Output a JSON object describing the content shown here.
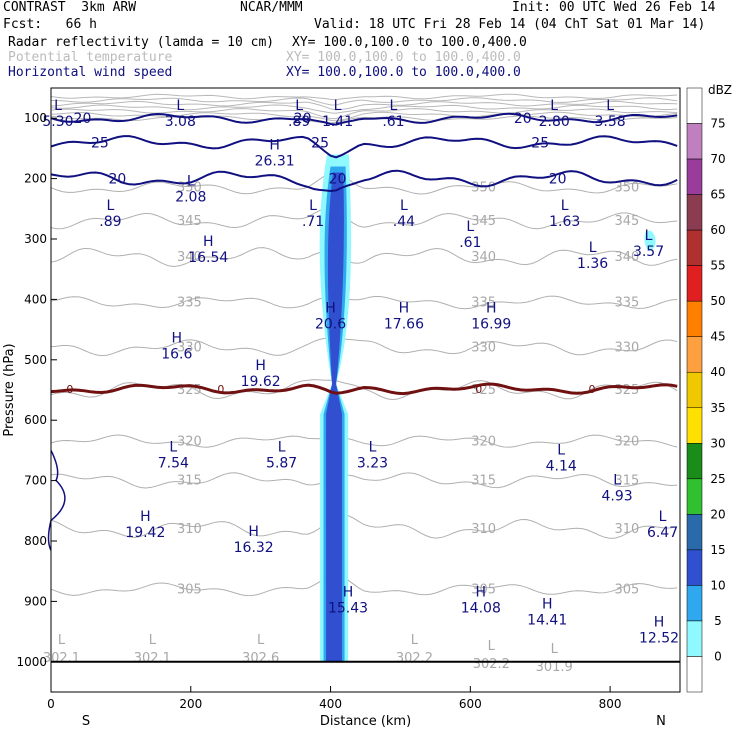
{
  "header": {
    "model": "CONTRAST  3km ARW",
    "org": "NCAR/MMM",
    "init": "Init: 00 UTC Wed 26 Feb 14",
    "fcst": "Fcst:   66 h",
    "valid": "Valid: 18 UTC Fri 28 Feb 14 (04 ChT Sat 01 Mar 14)",
    "fields": [
      {
        "name": "Radar reflectivity (lamda = 10 cm)",
        "xy": "XY= 100.0,100.0 to 100.0,400.0",
        "color": "#000000"
      },
      {
        "name": "Potential temperature",
        "xy": "XY= 100.0,100.0 to 100.0,400.0",
        "color": "#bbbbbb"
      },
      {
        "name": "Horizontal wind speed",
        "xy": "XY= 100.0,100.0 to 100.0,400.0",
        "color": "#101080"
      }
    ]
  },
  "colorbar": {
    "unit": "dBZ",
    "levels": [
      "75",
      "70",
      "65",
      "60",
      "55",
      "50",
      "45",
      "40",
      "35",
      "30",
      "25",
      "20",
      "15",
      "10",
      "5",
      "0"
    ],
    "colors": [
      "#ffffff",
      "#c080c0",
      "#9a3c9a",
      "#8c3c50",
      "#b03030",
      "#e02020",
      "#ff7f00",
      "#ffa040",
      "#f0c800",
      "#ffe000",
      "#1a8c1a",
      "#30c030",
      "#2a6aaa",
      "#3050d0",
      "#30a8f0",
      "#90f8ff"
    ]
  },
  "chart_data": {
    "type": "cross-section",
    "title": "Radar reflectivity, potential temperature, horizontal wind speed",
    "xlabel": "Distance (km)",
    "ylabel": "Pressure (hPa)",
    "xlim": [
      0,
      900
    ],
    "ylim": [
      1050,
      50
    ],
    "x_ticks": [
      "0",
      "200",
      "400",
      "600",
      "800"
    ],
    "y_ticks": [
      "100",
      "200",
      "300",
      "400",
      "500",
      "600",
      "700",
      "800",
      "900",
      "1000"
    ],
    "x_end_labels": {
      "left": "S",
      "right": "N"
    },
    "theta_contours": [
      {
        "value": "350",
        "p": 215
      },
      {
        "value": "345",
        "p": 270
      },
      {
        "value": "340",
        "p": 330
      },
      {
        "value": "335",
        "p": 405
      },
      {
        "value": "330",
        "p": 480
      },
      {
        "value": "325",
        "p": 550
      },
      {
        "value": "320",
        "p": 635
      },
      {
        "value": "315",
        "p": 700
      },
      {
        "value": "310",
        "p": 780
      },
      {
        "value": "305",
        "p": 880
      }
    ],
    "zero_contour": {
      "value": "0",
      "p": 548
    },
    "wind_contours": [
      {
        "value": "20",
        "p": 100
      },
      {
        "value": "25",
        "p": 140
      },
      {
        "value": "20",
        "p": 200
      }
    ],
    "reflectivity_column": {
      "x_km": 405,
      "p_top": 170,
      "p_bottom": 1000,
      "max_dbz": 20
    },
    "extrema": [
      {
        "t": "L",
        "v": "5.30",
        "x": 10,
        "p": 100
      },
      {
        "t": "L",
        "v": "3.08",
        "x": 185,
        "p": 100
      },
      {
        "t": "L",
        "v": ".89",
        "x": 355,
        "p": 100
      },
      {
        "t": "L",
        "v": "1.41",
        "x": 410,
        "p": 100
      },
      {
        "t": "L",
        "v": ".61",
        "x": 490,
        "p": 100
      },
      {
        "t": "L",
        "v": "2.80",
        "x": 720,
        "p": 100
      },
      {
        "t": "L",
        "v": "3.58",
        "x": 800,
        "p": 100
      },
      {
        "t": "H",
        "v": "26.31",
        "x": 320,
        "p": 165
      },
      {
        "t": "L",
        "v": "2.08",
        "x": 200,
        "p": 225
      },
      {
        "t": "L",
        "v": ".89",
        "x": 85,
        "p": 265
      },
      {
        "t": "L",
        "v": ".71",
        "x": 375,
        "p": 265
      },
      {
        "t": "L",
        "v": ".44",
        "x": 505,
        "p": 265
      },
      {
        "t": "L",
        "v": ".61",
        "x": 600,
        "p": 300
      },
      {
        "t": "L",
        "v": "1.63",
        "x": 735,
        "p": 265
      },
      {
        "t": "H",
        "v": "16.54",
        "x": 225,
        "p": 325
      },
      {
        "t": "L",
        "v": "1.36",
        "x": 775,
        "p": 335
      },
      {
        "t": "L",
        "v": "3.57",
        "x": 855,
        "p": 315
      },
      {
        "t": "H",
        "v": "20.6",
        "x": 400,
        "p": 435
      },
      {
        "t": "H",
        "v": "17.66",
        "x": 505,
        "p": 435
      },
      {
        "t": "H",
        "v": "16.99",
        "x": 630,
        "p": 435
      },
      {
        "t": "H",
        "v": "16.6",
        "x": 180,
        "p": 485
      },
      {
        "t": "H",
        "v": "19.62",
        "x": 300,
        "p": 530
      },
      {
        "t": "L",
        "v": "7.54",
        "x": 175,
        "p": 665
      },
      {
        "t": "L",
        "v": "5.87",
        "x": 330,
        "p": 665
      },
      {
        "t": "L",
        "v": "3.23",
        "x": 460,
        "p": 665
      },
      {
        "t": "L",
        "v": "4.14",
        "x": 730,
        "p": 670
      },
      {
        "t": "L",
        "v": "4.93",
        "x": 810,
        "p": 720
      },
      {
        "t": "H",
        "v": "19.42",
        "x": 135,
        "p": 780
      },
      {
        "t": "H",
        "v": "16.32",
        "x": 290,
        "p": 805
      },
      {
        "t": "L",
        "v": "6.47",
        "x": 875,
        "p": 780
      },
      {
        "t": "H",
        "v": "15.43",
        "x": 425,
        "p": 905
      },
      {
        "t": "H",
        "v": "14.08",
        "x": 615,
        "p": 905
      },
      {
        "t": "H",
        "v": "14.41",
        "x": 710,
        "p": 925
      },
      {
        "t": "H",
        "v": "12.52",
        "x": 870,
        "p": 955
      }
    ],
    "theta_minima": [
      {
        "t": "L",
        "v": "302.1",
        "x": 15,
        "p": 1010
      },
      {
        "t": "L",
        "v": "302.1",
        "x": 145,
        "p": 1010
      },
      {
        "t": "L",
        "v": "302.6",
        "x": 300,
        "p": 1010
      },
      {
        "t": "L",
        "v": "302.2",
        "x": 520,
        "p": 1010
      },
      {
        "t": "L",
        "v": "302.2",
        "x": 630,
        "p": 1020
      },
      {
        "t": "L",
        "v": "301.9",
        "x": 720,
        "p": 1025
      }
    ]
  }
}
